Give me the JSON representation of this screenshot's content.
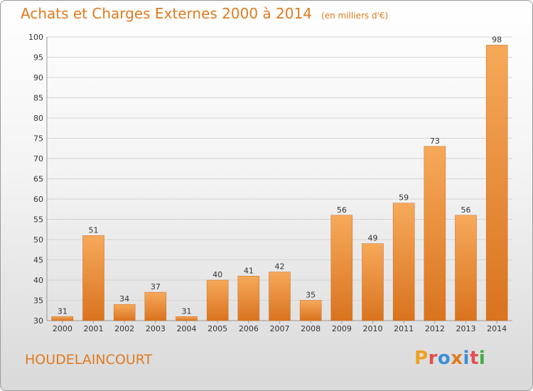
{
  "header": {
    "title": "Achats et Charges Externes 2000 à 2014",
    "unit_note": "(en milliers d'€)"
  },
  "footer": {
    "commune": "HOUDELAINCOURT",
    "logo_text": "Proxiti",
    "logo_colors": [
      "#f0a020",
      "#e05050",
      "#3a8fd8",
      "#e07a1f",
      "#3a8fd8",
      "#e05050",
      "#44aa44"
    ]
  },
  "colors": {
    "accent": "#e07a1f",
    "bar_light": "#f6a95a",
    "bar_dark": "#d9731f"
  },
  "chart_data": {
    "type": "bar",
    "title": "Achats et Charges Externes 2000 à 2014",
    "subtitle": "(en milliers d'€)",
    "xlabel": "",
    "ylabel": "",
    "categories": [
      "2000",
      "2001",
      "2002",
      "2003",
      "2004",
      "2005",
      "2006",
      "2007",
      "2008",
      "2009",
      "2010",
      "2011",
      "2012",
      "2013",
      "2014"
    ],
    "values": [
      31,
      51,
      34,
      37,
      31,
      40,
      41,
      42,
      35,
      56,
      49,
      59,
      73,
      56,
      98
    ],
    "ylim": [
      30,
      100
    ],
    "yticks": [
      30,
      35,
      40,
      45,
      50,
      55,
      60,
      65,
      70,
      75,
      80,
      85,
      90,
      95,
      100
    ],
    "grid": true,
    "legend": "none"
  }
}
